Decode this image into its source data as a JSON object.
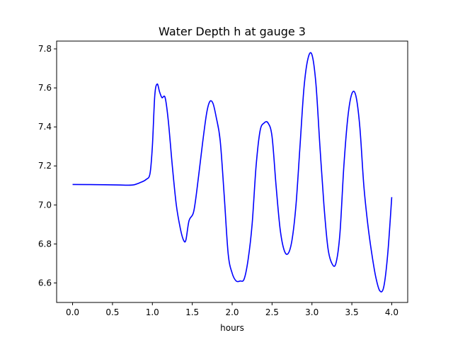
{
  "chart_data": {
    "type": "line",
    "title": "Water Depth h at gauge 3",
    "xlabel": "hours",
    "ylabel": "",
    "xlim": [
      -0.2,
      4.2
    ],
    "ylim": [
      6.5,
      7.84
    ],
    "xticks": [
      0.0,
      0.5,
      1.0,
      1.5,
      2.0,
      2.5,
      3.0,
      3.5,
      4.0
    ],
    "xtick_labels": [
      "0.0",
      "0.5",
      "1.0",
      "1.5",
      "2.0",
      "2.5",
      "3.0",
      "3.5",
      "4.0"
    ],
    "yticks": [
      6.6,
      6.8,
      7.0,
      7.2,
      7.4,
      7.6,
      7.8
    ],
    "ytick_labels": [
      "6.6",
      "6.8",
      "7.0",
      "7.2",
      "7.4",
      "7.6",
      "7.8"
    ],
    "grid": false,
    "series": [
      {
        "color": "#0000ff",
        "x": [
          0.0,
          0.3,
          0.6,
          0.75,
          0.85,
          0.92,
          0.97,
          1.0,
          1.03,
          1.06,
          1.09,
          1.12,
          1.16,
          1.2,
          1.25,
          1.3,
          1.35,
          1.39,
          1.42,
          1.46,
          1.52,
          1.58,
          1.63,
          1.68,
          1.72,
          1.76,
          1.8,
          1.85,
          1.9,
          1.95,
          2.0,
          2.05,
          2.1,
          2.15,
          2.2,
          2.25,
          2.3,
          2.35,
          2.4,
          2.45,
          2.5,
          2.55,
          2.6,
          2.65,
          2.7,
          2.75,
          2.8,
          2.85,
          2.9,
          2.95,
          3.0,
          3.05,
          3.1,
          3.15,
          3.2,
          3.25,
          3.3,
          3.35,
          3.4,
          3.45,
          3.5,
          3.55,
          3.6,
          3.65,
          3.7,
          3.75,
          3.8,
          3.85,
          3.9,
          3.95,
          4.0
        ],
        "y": [
          7.105,
          7.104,
          7.102,
          7.102,
          7.115,
          7.13,
          7.16,
          7.3,
          7.56,
          7.62,
          7.58,
          7.55,
          7.55,
          7.43,
          7.2,
          7.0,
          6.88,
          6.82,
          6.82,
          6.92,
          6.97,
          7.15,
          7.32,
          7.47,
          7.53,
          7.52,
          7.45,
          7.33,
          7.05,
          6.75,
          6.65,
          6.61,
          6.61,
          6.62,
          6.72,
          6.9,
          7.2,
          7.38,
          7.42,
          7.42,
          7.35,
          7.1,
          6.88,
          6.77,
          6.75,
          6.82,
          7.0,
          7.3,
          7.6,
          7.75,
          7.77,
          7.62,
          7.3,
          7.0,
          6.78,
          6.7,
          6.7,
          6.85,
          7.2,
          7.45,
          7.57,
          7.56,
          7.4,
          7.1,
          6.9,
          6.75,
          6.63,
          6.56,
          6.58,
          6.75,
          7.04
        ]
      }
    ]
  }
}
